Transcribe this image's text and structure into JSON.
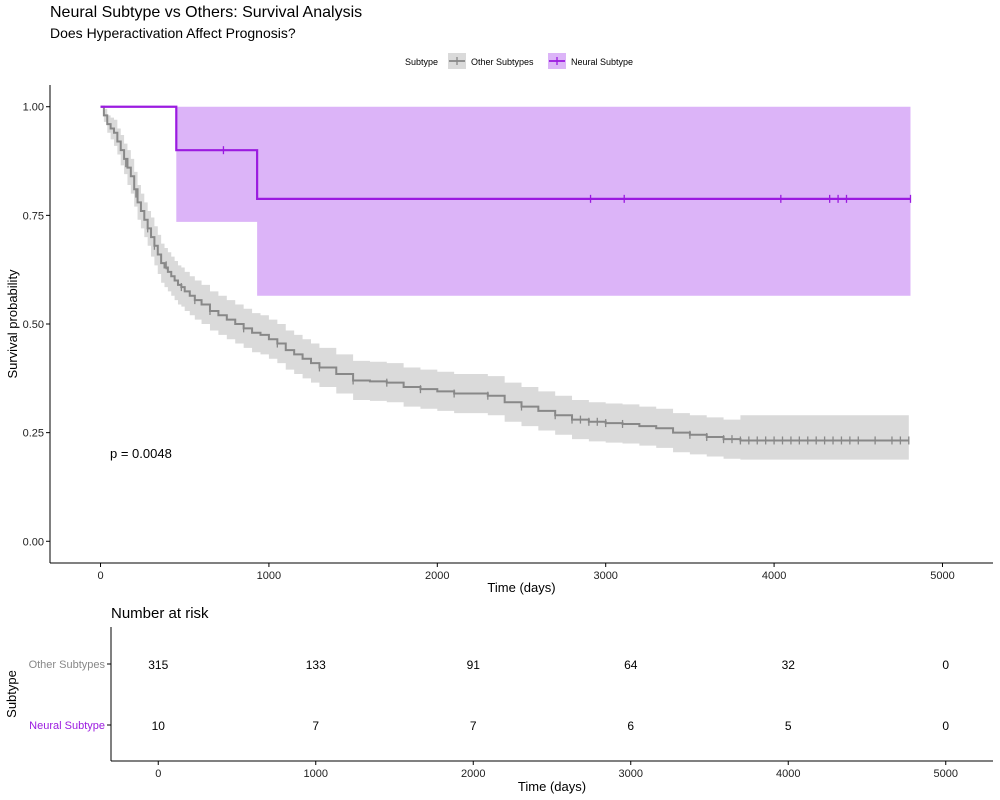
{
  "chart_data": [
    {
      "type": "line",
      "subtype": "kaplan-meier",
      "title": "Neural Subtype vs Others: Survival Analysis",
      "subtitle": "Does Hyperactivation Affect Prognosis?",
      "xlabel": "Time (days)",
      "ylabel": "Survival probability",
      "xlim": [
        -300,
        5300
      ],
      "ylim": [
        -0.05,
        1.05
      ],
      "x_ticks": [
        0,
        1000,
        2000,
        3000,
        4000,
        5000
      ],
      "y_ticks": [
        0.0,
        0.25,
        0.5,
        0.75,
        1.0
      ],
      "y_tick_labels": [
        "0.00",
        "0.25",
        "0.50",
        "0.75",
        "1.00"
      ],
      "legend": {
        "title": "Subtype",
        "position": "top"
      },
      "annotation": "p = 0.0048",
      "grid": false,
      "series": [
        {
          "name": "Other Subtypes",
          "color": "#888888",
          "band_color": "#dadada",
          "x": [
            0,
            20,
            40,
            60,
            80,
            100,
            120,
            140,
            160,
            180,
            200,
            220,
            240,
            260,
            280,
            300,
            320,
            340,
            360,
            380,
            400,
            420,
            440,
            460,
            480,
            500,
            530,
            560,
            600,
            650,
            700,
            750,
            800,
            850,
            900,
            950,
            1000,
            1050,
            1100,
            1150,
            1200,
            1250,
            1300,
            1400,
            1500,
            1600,
            1700,
            1800,
            1900,
            2000,
            2100,
            2200,
            2300,
            2400,
            2500,
            2600,
            2700,
            2800,
            2900,
            3000,
            3100,
            3200,
            3300,
            3400,
            3500,
            3600,
            3700,
            3800,
            3900,
            4000,
            4100,
            4200,
            4300,
            4400,
            4500,
            4600,
            4700,
            4800
          ],
          "y": [
            1.0,
            0.98,
            0.96,
            0.95,
            0.94,
            0.92,
            0.9,
            0.88,
            0.86,
            0.84,
            0.81,
            0.78,
            0.76,
            0.74,
            0.72,
            0.7,
            0.68,
            0.66,
            0.64,
            0.63,
            0.62,
            0.61,
            0.6,
            0.59,
            0.585,
            0.575,
            0.565,
            0.555,
            0.545,
            0.53,
            0.52,
            0.51,
            0.5,
            0.49,
            0.48,
            0.475,
            0.465,
            0.455,
            0.44,
            0.43,
            0.42,
            0.41,
            0.4,
            0.385,
            0.37,
            0.368,
            0.365,
            0.355,
            0.35,
            0.345,
            0.34,
            0.34,
            0.335,
            0.32,
            0.31,
            0.3,
            0.29,
            0.28,
            0.275,
            0.272,
            0.27,
            0.265,
            0.26,
            0.25,
            0.245,
            0.24,
            0.235,
            0.232,
            0.232,
            0.232,
            0.232,
            0.232,
            0.232,
            0.232,
            0.232,
            0.232,
            0.232,
            0.232
          ],
          "lower": [
            1.0,
            0.965,
            0.94,
            0.925,
            0.91,
            0.89,
            0.865,
            0.845,
            0.82,
            0.8,
            0.77,
            0.74,
            0.72,
            0.7,
            0.68,
            0.655,
            0.635,
            0.615,
            0.595,
            0.585,
            0.575,
            0.565,
            0.555,
            0.545,
            0.54,
            0.53,
            0.52,
            0.51,
            0.5,
            0.485,
            0.475,
            0.465,
            0.455,
            0.445,
            0.435,
            0.43,
            0.42,
            0.41,
            0.395,
            0.385,
            0.375,
            0.365,
            0.355,
            0.34,
            0.325,
            0.323,
            0.32,
            0.31,
            0.305,
            0.3,
            0.295,
            0.295,
            0.29,
            0.275,
            0.265,
            0.255,
            0.245,
            0.235,
            0.23,
            0.227,
            0.225,
            0.22,
            0.215,
            0.205,
            0.2,
            0.195,
            0.19,
            0.188,
            0.188,
            0.188,
            0.188,
            0.188,
            0.188,
            0.188,
            0.188,
            0.188,
            0.188,
            0.188
          ],
          "upper": [
            1.0,
            0.995,
            0.98,
            0.975,
            0.97,
            0.95,
            0.935,
            0.915,
            0.9,
            0.88,
            0.85,
            0.82,
            0.8,
            0.78,
            0.76,
            0.745,
            0.725,
            0.705,
            0.685,
            0.675,
            0.665,
            0.655,
            0.645,
            0.635,
            0.63,
            0.62,
            0.61,
            0.6,
            0.59,
            0.575,
            0.565,
            0.555,
            0.545,
            0.535,
            0.525,
            0.52,
            0.51,
            0.5,
            0.485,
            0.475,
            0.465,
            0.455,
            0.445,
            0.43,
            0.415,
            0.413,
            0.41,
            0.4,
            0.395,
            0.39,
            0.385,
            0.385,
            0.38,
            0.365,
            0.355,
            0.345,
            0.335,
            0.325,
            0.32,
            0.317,
            0.315,
            0.31,
            0.305,
            0.295,
            0.29,
            0.285,
            0.28,
            0.29,
            0.29,
            0.29,
            0.29,
            0.29,
            0.29,
            0.29,
            0.29,
            0.29,
            0.29,
            0.29
          ],
          "censor_x": [
            150,
            210,
            280,
            320,
            390,
            480,
            560,
            650,
            850,
            1050,
            1300,
            1500,
            1700,
            1900,
            2100,
            2300,
            2500,
            2700,
            2800,
            2850,
            2900,
            2950,
            3000,
            3100,
            3500,
            3600,
            3700,
            3750,
            3800,
            3850,
            3900,
            3950,
            4000,
            4050,
            4100,
            4150,
            4200,
            4250,
            4300,
            4350,
            4400,
            4450,
            4500,
            4600,
            4700,
            4750,
            4800
          ],
          "censor_y": [
            0.87,
            0.8,
            0.72,
            0.68,
            0.635,
            0.585,
            0.555,
            0.53,
            0.49,
            0.455,
            0.4,
            0.37,
            0.365,
            0.35,
            0.34,
            0.335,
            0.31,
            0.29,
            0.28,
            0.28,
            0.275,
            0.275,
            0.272,
            0.27,
            0.245,
            0.24,
            0.235,
            0.235,
            0.232,
            0.232,
            0.232,
            0.232,
            0.232,
            0.232,
            0.232,
            0.232,
            0.232,
            0.232,
            0.232,
            0.232,
            0.232,
            0.232,
            0.232,
            0.232,
            0.232,
            0.232,
            0.232
          ]
        },
        {
          "name": "Neural Subtype",
          "color": "#9b1be0",
          "band_color": "#dcb4f8",
          "x": [
            0,
            450,
            930,
            4810
          ],
          "y": [
            1.0,
            0.9,
            0.788,
            0.788
          ],
          "lower": [
            1.0,
            0.735,
            0.565,
            0.565
          ],
          "upper": [
            1.0,
            1.0,
            1.0,
            1.0
          ],
          "censor_x": [
            730,
            2910,
            3110,
            4040,
            4330,
            4380,
            4430,
            4810
          ],
          "censor_y": [
            0.9,
            0.788,
            0.788,
            0.788,
            0.788,
            0.788,
            0.788,
            0.788
          ]
        }
      ]
    },
    {
      "type": "table",
      "title": "Number at risk",
      "xlabel": "Time (days)",
      "ylabel": "Subtype",
      "xlim": [
        -300,
        5300
      ],
      "x_ticks": [
        0,
        1000,
        2000,
        3000,
        4000,
        5000
      ],
      "rows": [
        {
          "name": "Other Subtypes",
          "color": "#888888",
          "values": [
            315,
            133,
            91,
            64,
            32,
            0
          ]
        },
        {
          "name": "Neural Subtype",
          "color": "#9b1be0",
          "values": [
            10,
            7,
            7,
            6,
            5,
            0
          ]
        }
      ]
    }
  ]
}
